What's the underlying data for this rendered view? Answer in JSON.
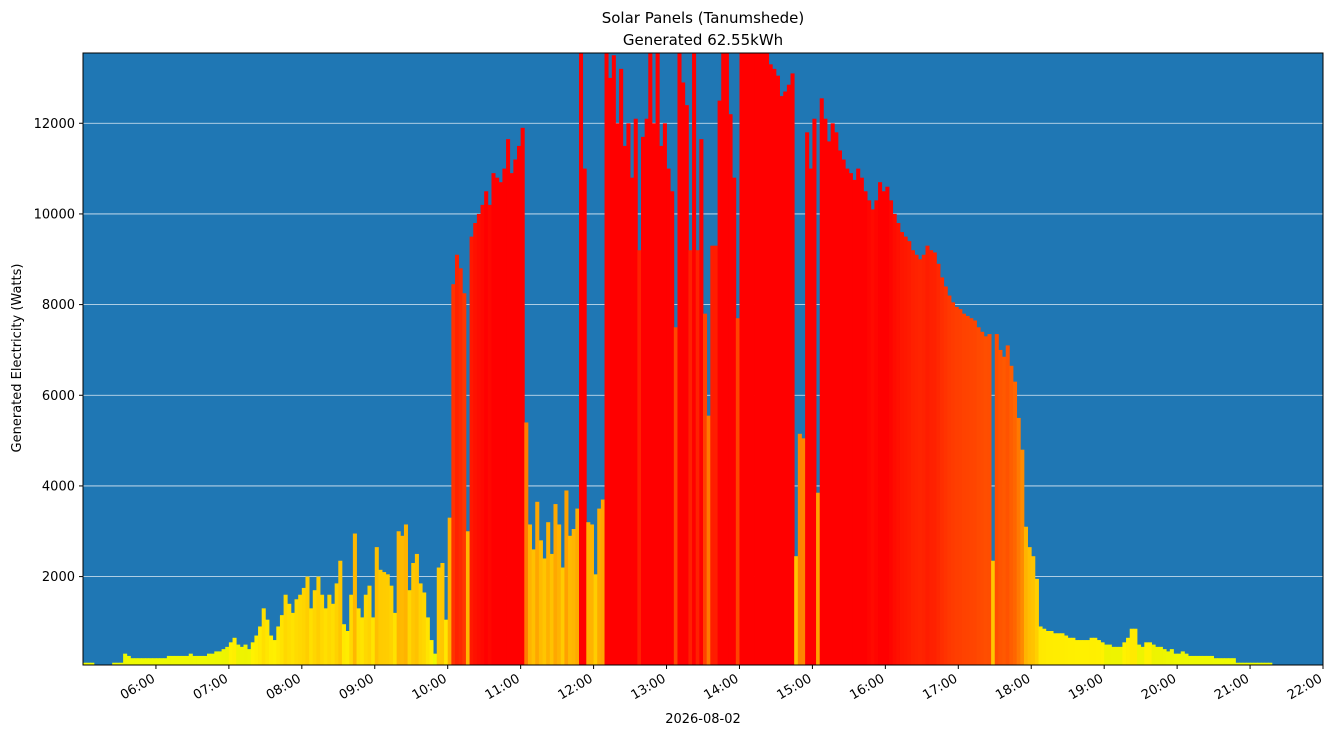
{
  "chart_data": {
    "type": "bar",
    "title": "Solar Panels (Tanumshede)",
    "subtitle": "Generated 62.55kWh",
    "xlabel": "2026-08-02",
    "ylabel": "Generated Electricity (Watts)",
    "x_start": "05:00",
    "x_end": "22:00",
    "x_ticks": [
      "06:00",
      "07:00",
      "08:00",
      "09:00",
      "10:00",
      "11:00",
      "12:00",
      "13:00",
      "14:00",
      "15:00",
      "16:00",
      "17:00",
      "18:00",
      "19:00",
      "20:00",
      "21:00",
      "22:00"
    ],
    "ylim": [
      50,
      13550
    ],
    "y_ticks": [
      2000,
      4000,
      6000,
      8000,
      10000,
      12000
    ],
    "grid": "horizontal",
    "plot_background": "#1f77b4",
    "color_scale": {
      "low": "#ffff00",
      "high": "#ff0000",
      "max_value": 10500
    },
    "interval_minutes": 3,
    "points": [
      [
        "05:00",
        100
      ],
      [
        "05:03",
        100
      ],
      [
        "05:06",
        100
      ],
      [
        "05:09",
        60
      ],
      [
        "05:12",
        60
      ],
      [
        "05:15",
        60
      ],
      [
        "05:18",
        60
      ],
      [
        "05:21",
        60
      ],
      [
        "05:24",
        100
      ],
      [
        "05:27",
        100
      ],
      [
        "05:30",
        100
      ],
      [
        "05:33",
        300
      ],
      [
        "05:36",
        250
      ],
      [
        "05:39",
        200
      ],
      [
        "05:42",
        200
      ],
      [
        "05:45",
        200
      ],
      [
        "05:48",
        200
      ],
      [
        "05:51",
        200
      ],
      [
        "05:54",
        200
      ],
      [
        "05:57",
        200
      ],
      [
        "06:00",
        200
      ],
      [
        "06:03",
        200
      ],
      [
        "06:06",
        200
      ],
      [
        "06:09",
        250
      ],
      [
        "06:12",
        250
      ],
      [
        "06:15",
        250
      ],
      [
        "06:18",
        250
      ],
      [
        "06:21",
        250
      ],
      [
        "06:24",
        250
      ],
      [
        "06:27",
        300
      ],
      [
        "06:30",
        250
      ],
      [
        "06:33",
        250
      ],
      [
        "06:36",
        250
      ],
      [
        "06:39",
        250
      ],
      [
        "06:42",
        300
      ],
      [
        "06:45",
        300
      ],
      [
        "06:48",
        350
      ],
      [
        "06:51",
        350
      ],
      [
        "06:54",
        400
      ],
      [
        "06:57",
        450
      ],
      [
        "07:00",
        550
      ],
      [
        "07:03",
        650
      ],
      [
        "07:06",
        500
      ],
      [
        "07:09",
        450
      ],
      [
        "07:12",
        500
      ],
      [
        "07:15",
        400
      ],
      [
        "07:18",
        550
      ],
      [
        "07:21",
        700
      ],
      [
        "07:24",
        900
      ],
      [
        "07:27",
        1300
      ],
      [
        "07:30",
        1050
      ],
      [
        "07:33",
        700
      ],
      [
        "07:36",
        600
      ],
      [
        "07:39",
        900
      ],
      [
        "07:42",
        1150
      ],
      [
        "07:45",
        1600
      ],
      [
        "07:48",
        1400
      ],
      [
        "07:51",
        1200
      ],
      [
        "07:54",
        1500
      ],
      [
        "07:57",
        1600
      ],
      [
        "08:00",
        1750
      ],
      [
        "08:03",
        2000
      ],
      [
        "08:06",
        1300
      ],
      [
        "08:09",
        1700
      ],
      [
        "08:12",
        2000
      ],
      [
        "08:15",
        1600
      ],
      [
        "08:18",
        1300
      ],
      [
        "08:21",
        1600
      ],
      [
        "08:24",
        1400
      ],
      [
        "08:27",
        1850
      ],
      [
        "08:30",
        2350
      ],
      [
        "08:33",
        950
      ],
      [
        "08:36",
        800
      ],
      [
        "08:39",
        1600
      ],
      [
        "08:42",
        2950
      ],
      [
        "08:45",
        1300
      ],
      [
        "08:48",
        1100
      ],
      [
        "08:51",
        1600
      ],
      [
        "08:54",
        1800
      ],
      [
        "08:57",
        1100
      ],
      [
        "09:00",
        2650
      ],
      [
        "09:03",
        2150
      ],
      [
        "09:06",
        2100
      ],
      [
        "09:09",
        2050
      ],
      [
        "09:12",
        1800
      ],
      [
        "09:15",
        1200
      ],
      [
        "09:18",
        3000
      ],
      [
        "09:21",
        2900
      ],
      [
        "09:24",
        3150
      ],
      [
        "09:27",
        1700
      ],
      [
        "09:30",
        2300
      ],
      [
        "09:33",
        2500
      ],
      [
        "09:36",
        1850
      ],
      [
        "09:39",
        1650
      ],
      [
        "09:42",
        1100
      ],
      [
        "09:45",
        600
      ],
      [
        "09:48",
        300
      ],
      [
        "09:51",
        2200
      ],
      [
        "09:54",
        2300
      ],
      [
        "09:57",
        1050
      ],
      [
        "10:00",
        3300
      ],
      [
        "10:03",
        8450
      ],
      [
        "10:06",
        9100
      ],
      [
        "10:09",
        8800
      ],
      [
        "10:12",
        8250
      ],
      [
        "10:15",
        3000
      ],
      [
        "10:18",
        9500
      ],
      [
        "10:21",
        9800
      ],
      [
        "10:24",
        10000
      ],
      [
        "10:27",
        10200
      ],
      [
        "10:30",
        10500
      ],
      [
        "10:33",
        10200
      ],
      [
        "10:36",
        10900
      ],
      [
        "10:39",
        10800
      ],
      [
        "10:42",
        10700
      ],
      [
        "10:45",
        11000
      ],
      [
        "10:48",
        11650
      ],
      [
        "10:51",
        10900
      ],
      [
        "10:54",
        11200
      ],
      [
        "10:57",
        11500
      ],
      [
        "11:00",
        11900
      ],
      [
        "11:03",
        5400
      ],
      [
        "11:06",
        3150
      ],
      [
        "11:09",
        2600
      ],
      [
        "11:12",
        3650
      ],
      [
        "11:15",
        2800
      ],
      [
        "11:18",
        2400
      ],
      [
        "11:21",
        3200
      ],
      [
        "11:24",
        2500
      ],
      [
        "11:27",
        3600
      ],
      [
        "11:30",
        3150
      ],
      [
        "11:33",
        2200
      ],
      [
        "11:36",
        3900
      ],
      [
        "11:39",
        2900
      ],
      [
        "11:42",
        3050
      ],
      [
        "11:45",
        3500
      ],
      [
        "11:48",
        13600
      ],
      [
        "11:51",
        11000
      ],
      [
        "11:54",
        3200
      ],
      [
        "11:57",
        3150
      ],
      [
        "12:00",
        2050
      ],
      [
        "12:03",
        3500
      ],
      [
        "12:06",
        3700
      ],
      [
        "12:09",
        13600
      ],
      [
        "12:12",
        13000
      ],
      [
        "12:15",
        13500
      ],
      [
        "12:18",
        12000
      ],
      [
        "12:21",
        13200
      ],
      [
        "12:24",
        11500
      ],
      [
        "12:27",
        12000
      ],
      [
        "12:30",
        10800
      ],
      [
        "12:33",
        12100
      ],
      [
        "12:36",
        9200
      ],
      [
        "12:39",
        11700
      ],
      [
        "12:42",
        12100
      ],
      [
        "12:45",
        13600
      ],
      [
        "12:48",
        12000
      ],
      [
        "12:51",
        13600
      ],
      [
        "12:54",
        11500
      ],
      [
        "12:57",
        12000
      ],
      [
        "13:00",
        11000
      ],
      [
        "13:03",
        10500
      ],
      [
        "13:06",
        7500
      ],
      [
        "13:09",
        13600
      ],
      [
        "13:12",
        12900
      ],
      [
        "13:15",
        12400
      ],
      [
        "13:18",
        9200
      ],
      [
        "13:21",
        13600
      ],
      [
        "13:24",
        9200
      ],
      [
        "13:27",
        11650
      ],
      [
        "13:30",
        7800
      ],
      [
        "13:33",
        5550
      ],
      [
        "13:36",
        9300
      ],
      [
        "13:39",
        9300
      ],
      [
        "13:42",
        12500
      ],
      [
        "13:45",
        13600
      ],
      [
        "13:48",
        13600
      ],
      [
        "13:51",
        12200
      ],
      [
        "13:54",
        10800
      ],
      [
        "13:57",
        7700
      ],
      [
        "14:00",
        13600
      ],
      [
        "14:03",
        13600
      ],
      [
        "14:06",
        13600
      ],
      [
        "14:09",
        13600
      ],
      [
        "14:12",
        13600
      ],
      [
        "14:15",
        13600
      ],
      [
        "14:18",
        13600
      ],
      [
        "14:21",
        13600
      ],
      [
        "14:24",
        13300
      ],
      [
        "14:27",
        13200
      ],
      [
        "14:30",
        13050
      ],
      [
        "14:33",
        12600
      ],
      [
        "14:36",
        12700
      ],
      [
        "14:39",
        12850
      ],
      [
        "14:42",
        13100
      ],
      [
        "14:45",
        2450
      ],
      [
        "14:48",
        5150
      ],
      [
        "14:51",
        5050
      ],
      [
        "14:54",
        11800
      ],
      [
        "14:57",
        11000
      ],
      [
        "15:00",
        12100
      ],
      [
        "15:03",
        3850
      ],
      [
        "15:06",
        12550
      ],
      [
        "15:09",
        12100
      ],
      [
        "15:12",
        11600
      ],
      [
        "15:15",
        12000
      ],
      [
        "15:18",
        11800
      ],
      [
        "15:21",
        11400
      ],
      [
        "15:24",
        11200
      ],
      [
        "15:27",
        11000
      ],
      [
        "15:30",
        10900
      ],
      [
        "15:33",
        10750
      ],
      [
        "15:36",
        11000
      ],
      [
        "15:39",
        10800
      ],
      [
        "15:42",
        10500
      ],
      [
        "15:45",
        10300
      ],
      [
        "15:48",
        10100
      ],
      [
        "15:51",
        10300
      ],
      [
        "15:54",
        10700
      ],
      [
        "15:57",
        10500
      ],
      [
        "16:00",
        10600
      ],
      [
        "16:03",
        10300
      ],
      [
        "16:06",
        10000
      ],
      [
        "16:09",
        9800
      ],
      [
        "16:12",
        9600
      ],
      [
        "16:15",
        9500
      ],
      [
        "16:18",
        9400
      ],
      [
        "16:21",
        9200
      ],
      [
        "16:24",
        9100
      ],
      [
        "16:27",
        9000
      ],
      [
        "16:30",
        9100
      ],
      [
        "16:33",
        9300
      ],
      [
        "16:36",
        9200
      ],
      [
        "16:39",
        9150
      ],
      [
        "16:42",
        8900
      ],
      [
        "16:45",
        8600
      ],
      [
        "16:48",
        8400
      ],
      [
        "16:51",
        8200
      ],
      [
        "16:54",
        8050
      ],
      [
        "16:57",
        7950
      ],
      [
        "17:00",
        7900
      ],
      [
        "17:03",
        7800
      ],
      [
        "17:06",
        7750
      ],
      [
        "17:09",
        7700
      ],
      [
        "17:12",
        7650
      ],
      [
        "17:15",
        7500
      ],
      [
        "17:18",
        7400
      ],
      [
        "17:21",
        7300
      ],
      [
        "17:24",
        7350
      ],
      [
        "17:27",
        2350
      ],
      [
        "17:30",
        7350
      ],
      [
        "17:33",
        7000
      ],
      [
        "17:36",
        6850
      ],
      [
        "17:39",
        7100
      ],
      [
        "17:42",
        6650
      ],
      [
        "17:45",
        6300
      ],
      [
        "17:48",
        5500
      ],
      [
        "17:51",
        4800
      ],
      [
        "17:54",
        3100
      ],
      [
        "17:57",
        2650
      ],
      [
        "18:00",
        2450
      ],
      [
        "18:03",
        1950
      ],
      [
        "18:06",
        900
      ],
      [
        "18:09",
        850
      ],
      [
        "18:12",
        800
      ],
      [
        "18:15",
        800
      ],
      [
        "18:18",
        750
      ],
      [
        "18:21",
        750
      ],
      [
        "18:24",
        750
      ],
      [
        "18:27",
        700
      ],
      [
        "18:30",
        650
      ],
      [
        "18:33",
        650
      ],
      [
        "18:36",
        600
      ],
      [
        "18:39",
        600
      ],
      [
        "18:42",
        600
      ],
      [
        "18:45",
        600
      ],
      [
        "18:48",
        650
      ],
      [
        "18:51",
        650
      ],
      [
        "18:54",
        600
      ],
      [
        "18:57",
        550
      ],
      [
        "19:00",
        500
      ],
      [
        "19:03",
        500
      ],
      [
        "19:06",
        450
      ],
      [
        "19:09",
        450
      ],
      [
        "19:12",
        450
      ],
      [
        "19:15",
        550
      ],
      [
        "19:18",
        650
      ],
      [
        "19:21",
        850
      ],
      [
        "19:24",
        850
      ],
      [
        "19:27",
        500
      ],
      [
        "19:30",
        450
      ],
      [
        "19:33",
        550
      ],
      [
        "19:36",
        550
      ],
      [
        "19:39",
        500
      ],
      [
        "19:42",
        450
      ],
      [
        "19:45",
        450
      ],
      [
        "19:48",
        400
      ],
      [
        "19:51",
        350
      ],
      [
        "19:54",
        400
      ],
      [
        "19:57",
        300
      ],
      [
        "20:00",
        300
      ],
      [
        "20:03",
        350
      ],
      [
        "20:06",
        300
      ],
      [
        "20:09",
        250
      ],
      [
        "20:12",
        250
      ],
      [
        "20:15",
        250
      ],
      [
        "20:18",
        250
      ],
      [
        "20:21",
        250
      ],
      [
        "20:24",
        250
      ],
      [
        "20:27",
        250
      ],
      [
        "20:30",
        200
      ],
      [
        "20:33",
        200
      ],
      [
        "20:36",
        200
      ],
      [
        "20:39",
        200
      ],
      [
        "20:42",
        200
      ],
      [
        "20:45",
        200
      ],
      [
        "20:48",
        100
      ],
      [
        "20:51",
        100
      ],
      [
        "20:54",
        100
      ],
      [
        "20:57",
        100
      ],
      [
        "21:00",
        100
      ],
      [
        "21:03",
        100
      ],
      [
        "21:06",
        100
      ],
      [
        "21:09",
        100
      ],
      [
        "21:12",
        100
      ],
      [
        "21:15",
        100
      ],
      [
        "21:18",
        60
      ],
      [
        "21:21",
        60
      ]
    ]
  }
}
